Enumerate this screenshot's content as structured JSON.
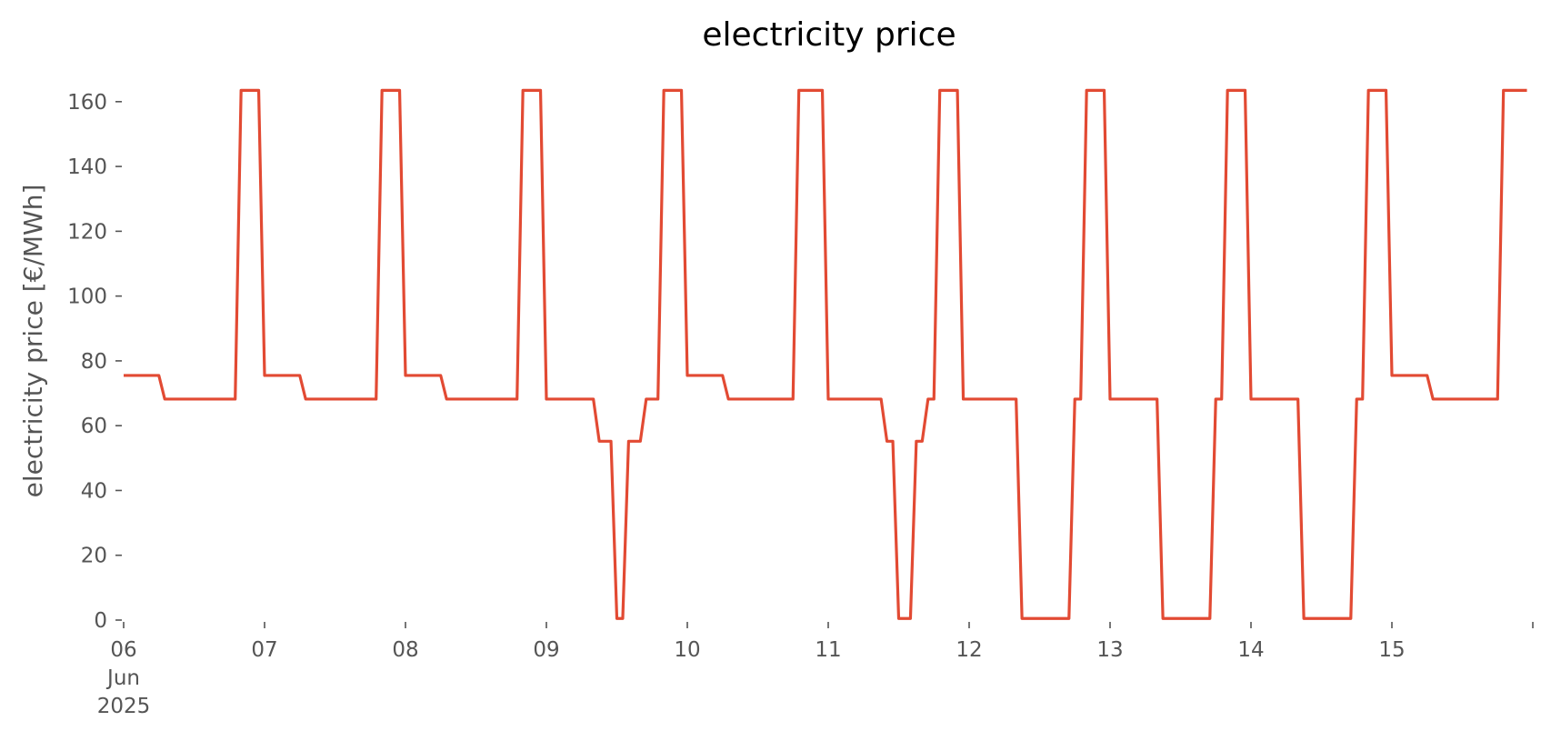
{
  "chart_data": {
    "type": "line",
    "title": "electricity price",
    "xlabel": "",
    "ylabel": "electricity price [€/MWh]",
    "ylim": [
      0,
      165
    ],
    "y_ticks": [
      0,
      20,
      40,
      60,
      80,
      100,
      120,
      140,
      160
    ],
    "x_start": "2025-06-06T00:00",
    "x_end": "2025-06-16T00:00",
    "x_step_hours": 1,
    "x_ticks": [
      {
        "date": "2025-06-06",
        "lines": [
          "06",
          "Jun",
          "2025"
        ]
      },
      {
        "date": "2025-06-07",
        "lines": [
          "07"
        ]
      },
      {
        "date": "2025-06-08",
        "lines": [
          "08"
        ]
      },
      {
        "date": "2025-06-09",
        "lines": [
          "09"
        ]
      },
      {
        "date": "2025-06-10",
        "lines": [
          "10"
        ]
      },
      {
        "date": "2025-06-11",
        "lines": [
          "11"
        ]
      },
      {
        "date": "2025-06-12",
        "lines": [
          "12"
        ]
      },
      {
        "date": "2025-06-13",
        "lines": [
          "13"
        ]
      },
      {
        "date": "2025-06-14",
        "lines": [
          "14"
        ]
      },
      {
        "date": "2025-06-15",
        "lines": [
          "15"
        ]
      },
      {
        "date": "2025-06-16",
        "lines": [
          ""
        ]
      }
    ],
    "grid": false,
    "legend": "none",
    "series": [
      {
        "color": "#e24a33",
        "values": [
          75.5,
          75.5,
          75.5,
          75.5,
          75.5,
          75.5,
          75.5,
          68.2,
          68.2,
          68.2,
          68.2,
          68.2,
          68.2,
          68.2,
          68.2,
          68.2,
          68.2,
          68.2,
          68.2,
          68.2,
          163.5,
          163.5,
          163.5,
          163.5,
          75.5,
          75.5,
          75.5,
          75.5,
          75.5,
          75.5,
          75.5,
          68.2,
          68.2,
          68.2,
          68.2,
          68.2,
          68.2,
          68.2,
          68.2,
          68.2,
          68.2,
          68.2,
          68.2,
          68.2,
          163.5,
          163.5,
          163.5,
          163.5,
          75.5,
          75.5,
          75.5,
          75.5,
          75.5,
          75.5,
          75.5,
          68.2,
          68.2,
          68.2,
          68.2,
          68.2,
          68.2,
          68.2,
          68.2,
          68.2,
          68.2,
          68.2,
          68.2,
          68.2,
          163.5,
          163.5,
          163.5,
          163.5,
          68.2,
          68.2,
          68.2,
          68.2,
          68.2,
          68.2,
          68.2,
          68.2,
          68.2,
          55.2,
          55.2,
          55.2,
          0.5,
          0.5,
          55.2,
          55.2,
          55.2,
          68.2,
          68.2,
          68.2,
          163.5,
          163.5,
          163.5,
          163.5,
          75.5,
          75.5,
          75.5,
          75.5,
          75.5,
          75.5,
          75.5,
          68.2,
          68.2,
          68.2,
          68.2,
          68.2,
          68.2,
          68.2,
          68.2,
          68.2,
          68.2,
          68.2,
          68.2,
          163.5,
          163.5,
          163.5,
          163.5,
          163.5,
          68.2,
          68.2,
          68.2,
          68.2,
          68.2,
          68.2,
          68.2,
          68.2,
          68.2,
          68.2,
          55.2,
          55.2,
          0.5,
          0.5,
          0.5,
          55.2,
          55.2,
          68.2,
          68.2,
          163.5,
          163.5,
          163.5,
          163.5,
          68.2,
          68.2,
          68.2,
          68.2,
          68.2,
          68.2,
          68.2,
          68.2,
          68.2,
          68.2,
          0.5,
          0.5,
          0.5,
          0.5,
          0.5,
          0.5,
          0.5,
          0.5,
          0.5,
          68.2,
          68.2,
          163.5,
          163.5,
          163.5,
          163.5,
          68.2,
          68.2,
          68.2,
          68.2,
          68.2,
          68.2,
          68.2,
          68.2,
          68.2,
          0.5,
          0.5,
          0.5,
          0.5,
          0.5,
          0.5,
          0.5,
          0.5,
          0.5,
          68.2,
          68.2,
          163.5,
          163.5,
          163.5,
          163.5,
          68.2,
          68.2,
          68.2,
          68.2,
          68.2,
          68.2,
          68.2,
          68.2,
          68.2,
          0.5,
          0.5,
          0.5,
          0.5,
          0.5,
          0.5,
          0.5,
          0.5,
          0.5,
          68.2,
          68.2,
          163.5,
          163.5,
          163.5,
          163.5,
          75.5,
          75.5,
          75.5,
          75.5,
          75.5,
          75.5,
          75.5,
          68.2,
          68.2,
          68.2,
          68.2,
          68.2,
          68.2,
          68.2,
          68.2,
          68.2,
          68.2,
          68.2,
          68.2,
          163.5,
          163.5,
          163.5,
          163.5,
          163.5
        ]
      }
    ]
  }
}
